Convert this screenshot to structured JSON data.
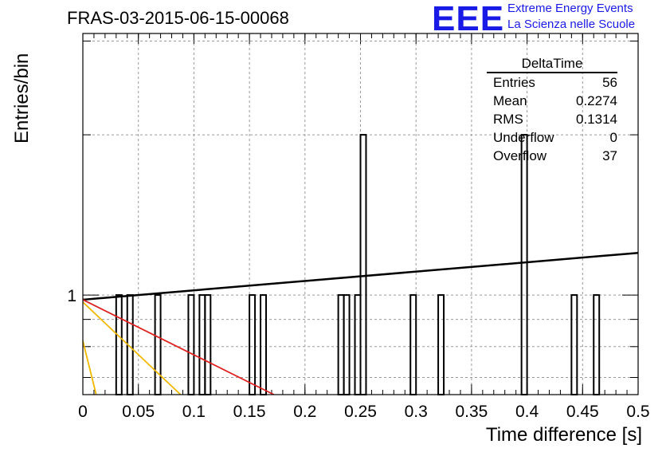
{
  "header": {
    "title": "FRAS-03-2015-06-15-00068",
    "logo_text": "EEE",
    "logo_line1": "Extreme Energy Events",
    "logo_line2": "La Scienza nelle Scuole"
  },
  "stats_box": {
    "name": "DeltaTime",
    "rows": [
      {
        "label": "Entries",
        "value": "56"
      },
      {
        "label": "Mean",
        "value": "0.2274"
      },
      {
        "label": "RMS",
        "value": "0.1314"
      },
      {
        "label": "Underflow",
        "value": "0"
      },
      {
        "label": "Overflow",
        "value": "37"
      }
    ]
  },
  "colors": {
    "fit_black": "#000000",
    "fit_red": "#e02020",
    "fit_orange": "#f0b800",
    "logo_blue": "#1a1ae6"
  },
  "chart_data": {
    "type": "histogram",
    "title": "FRAS-03-2015-06-15-00068",
    "xlabel": "Time difference [s]",
    "ylabel": "Entries/bin",
    "xlim": [
      0,
      0.5
    ],
    "ylim": [
      0.65,
      3.1
    ],
    "y_scale": "log",
    "grid": true,
    "x_ticks": [
      "0",
      "0.05",
      "0.1",
      "0.15",
      "0.2",
      "0.25",
      "0.3",
      "0.35",
      "0.4",
      "0.45",
      "0.5"
    ],
    "y_tick_labels": [
      "1"
    ],
    "bin_width": 0.005,
    "bins": [
      {
        "x": 0.03,
        "count": 1
      },
      {
        "x": 0.04,
        "count": 1
      },
      {
        "x": 0.065,
        "count": 1
      },
      {
        "x": 0.095,
        "count": 1
      },
      {
        "x": 0.105,
        "count": 1
      },
      {
        "x": 0.11,
        "count": 1
      },
      {
        "x": 0.15,
        "count": 1
      },
      {
        "x": 0.16,
        "count": 1
      },
      {
        "x": 0.23,
        "count": 1
      },
      {
        "x": 0.235,
        "count": 1
      },
      {
        "x": 0.245,
        "count": 1
      },
      {
        "x": 0.25,
        "count": 2
      },
      {
        "x": 0.295,
        "count": 1
      },
      {
        "x": 0.32,
        "count": 1
      },
      {
        "x": 0.395,
        "count": 2
      },
      {
        "x": 0.44,
        "count": 1
      },
      {
        "x": 0.46,
        "count": 1
      }
    ],
    "fit_lines": [
      {
        "color": "#000000",
        "points": [
          [
            0,
            0.98
          ],
          [
            0.5,
            1.2
          ]
        ]
      },
      {
        "color": "#e02020",
        "points": [
          [
            0,
            0.98
          ],
          [
            0.172,
            0.65
          ]
        ]
      },
      {
        "color": "#f0b800",
        "points": [
          [
            0,
            0.97
          ],
          [
            0.088,
            0.65
          ]
        ]
      },
      {
        "color": "#f0b800",
        "points": [
          [
            0,
            0.82
          ],
          [
            0.012,
            0.65
          ]
        ]
      }
    ]
  }
}
